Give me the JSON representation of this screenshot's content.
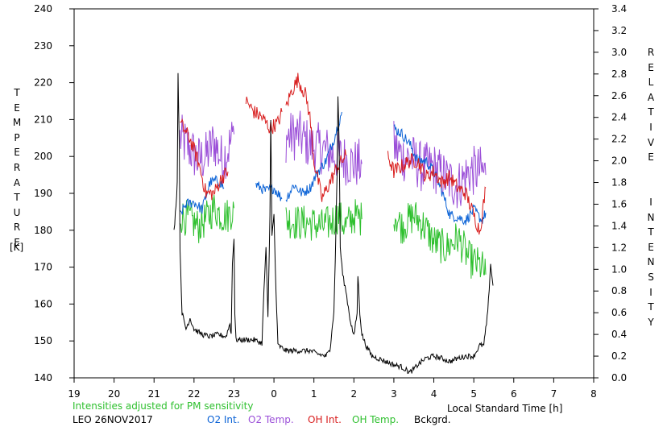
{
  "chart_data": {
    "type": "line",
    "station": "LEO 26NOV2017",
    "note": "Intensities adjusted for PM sensitivity",
    "left_axis": {
      "label": "TEMPERATURE",
      "unit": "[K]",
      "range": [
        140,
        240
      ],
      "ticks": [
        "140",
        "150",
        "160",
        "170",
        "180",
        "190",
        "200",
        "210",
        "220",
        "230",
        "240"
      ]
    },
    "right_axis": {
      "label": "RELATIVE INTENSITY",
      "range": [
        0.0,
        3.4
      ],
      "ticks": [
        "0.0",
        "0.2",
        "0.4",
        "0.6",
        "0.8",
        "1.0",
        "1.2",
        "1.4",
        "1.6",
        "1.8",
        "2.0",
        "2.2",
        "2.4",
        "2.6",
        "2.8",
        "3.0",
        "3.2",
        "3.4"
      ]
    },
    "x_axis": {
      "label": "Local Standard Time [h]",
      "range": [
        19,
        32
      ],
      "ticks": [
        "19",
        "20",
        "21",
        "22",
        "23",
        "0",
        "1",
        "2",
        "3",
        "4",
        "5",
        "6",
        "7",
        "8"
      ]
    },
    "legend": [
      {
        "name": "O2 Int.",
        "color": "#0a62d6"
      },
      {
        "name": "O2 Temp.",
        "color": "#9b4fd8"
      },
      {
        "name": "OH Int.",
        "color": "#d81c1c"
      },
      {
        "name": "OH Temp.",
        "color": "#2fc02f"
      },
      {
        "name": "Bckgrd.",
        "color": "#000000"
      }
    ],
    "series": [
      {
        "name": "O2 Temp.",
        "axis": "left",
        "color": "#9b4fd8",
        "noise": 7,
        "segments": [
          [
            [
              21.65,
              205
            ],
            [
              21.9,
              202
            ],
            [
              22.1,
              199
            ],
            [
              22.3,
              200
            ],
            [
              22.5,
              204
            ],
            [
              22.7,
              199
            ],
            [
              22.85,
              202
            ],
            [
              23.0,
              206
            ]
          ],
          [
            [
              24.3,
              205
            ],
            [
              24.6,
              206
            ],
            [
              24.9,
              203
            ],
            [
              25.2,
              202
            ],
            [
              25.4,
              201
            ],
            [
              25.6,
              200
            ],
            [
              25.8,
              199
            ],
            [
              26.0,
              198
            ],
            [
              26.2,
              198
            ]
          ],
          [
            [
              27.0,
              203
            ],
            [
              27.2,
              200
            ],
            [
              27.5,
              199
            ],
            [
              27.7,
              197
            ],
            [
              28.0,
              197
            ],
            [
              28.3,
              194
            ],
            [
              28.6,
              192
            ],
            [
              28.9,
              196
            ],
            [
              29.2,
              196
            ],
            [
              29.3,
              195
            ]
          ]
        ]
      },
      {
        "name": "OH Temp.",
        "axis": "left",
        "color": "#2fc02f",
        "noise": 5,
        "segments": [
          [
            [
              21.65,
              184
            ],
            [
              21.9,
              183
            ],
            [
              22.1,
              181
            ],
            [
              22.3,
              183
            ],
            [
              22.5,
              186
            ],
            [
              22.7,
              184
            ],
            [
              22.85,
              184
            ],
            [
              23.0,
              186
            ]
          ],
          [
            [
              24.3,
              183
            ],
            [
              24.6,
              182
            ],
            [
              24.9,
              182
            ],
            [
              25.2,
              181
            ],
            [
              25.4,
              182
            ],
            [
              25.6,
              184
            ],
            [
              25.8,
              181
            ],
            [
              26.0,
              184
            ],
            [
              26.2,
              183
            ]
          ],
          [
            [
              27.0,
              185
            ],
            [
              27.2,
              181
            ],
            [
              27.5,
              184
            ],
            [
              27.7,
              182
            ],
            [
              28.0,
              177
            ],
            [
              28.3,
              175
            ],
            [
              28.6,
              178
            ],
            [
              28.9,
              172
            ],
            [
              29.2,
              170
            ],
            [
              29.3,
              168
            ]
          ]
        ]
      },
      {
        "name": "O2 Int.",
        "axis": "right",
        "color": "#0a62d6",
        "noise": 0.05,
        "segments": [
          [
            [
              21.65,
              1.5
            ],
            [
              21.8,
              1.6
            ],
            [
              22.0,
              1.62
            ],
            [
              22.2,
              1.55
            ],
            [
              22.4,
              1.8
            ],
            [
              22.6,
              1.82
            ],
            [
              22.75,
              1.75
            ]
          ],
          [
            [
              23.55,
              1.78
            ],
            [
              23.8,
              1.72
            ],
            [
              24.0,
              1.75
            ],
            [
              24.2,
              1.65
            ]
          ],
          [
            [
              24.3,
              1.65
            ],
            [
              24.5,
              1.78
            ],
            [
              24.7,
              1.7
            ],
            [
              24.9,
              1.75
            ],
            [
              25.1,
              1.9
            ],
            [
              25.3,
              2.0
            ],
            [
              25.5,
              2.2
            ],
            [
              25.7,
              2.45
            ]
          ],
          [
            [
              27.0,
              2.3
            ],
            [
              27.2,
              2.25
            ],
            [
              27.4,
              2.15
            ],
            [
              27.6,
              2.0
            ],
            [
              27.8,
              2.0
            ],
            [
              28.0,
              1.9
            ],
            [
              28.2,
              1.72
            ],
            [
              28.4,
              1.5
            ],
            [
              28.6,
              1.48
            ],
            [
              28.8,
              1.45
            ],
            [
              29.0,
              1.55
            ],
            [
              29.2,
              1.45
            ],
            [
              29.3,
              1.52
            ]
          ]
        ]
      },
      {
        "name": "OH Int.",
        "axis": "right",
        "color": "#d81c1c",
        "noise": 0.07,
        "segments": [
          [
            [
              21.65,
              2.35
            ],
            [
              21.9,
              2.2
            ],
            [
              22.1,
              2.0
            ],
            [
              22.3,
              1.7
            ],
            [
              22.5,
              1.7
            ],
            [
              22.7,
              1.85
            ],
            [
              22.85,
              1.9
            ]
          ],
          [
            [
              23.3,
              2.55
            ],
            [
              23.5,
              2.45
            ],
            [
              23.7,
              2.4
            ],
            [
              23.9,
              2.3
            ],
            [
              24.1,
              2.35
            ],
            [
              24.2,
              2.45
            ]
          ],
          [
            [
              24.3,
              2.5
            ],
            [
              24.45,
              2.65
            ],
            [
              24.6,
              2.75
            ],
            [
              24.8,
              2.6
            ],
            [
              24.9,
              2.4
            ],
            [
              25.0,
              2.0
            ],
            [
              25.2,
              1.65
            ],
            [
              25.4,
              1.8
            ],
            [
              25.6,
              1.95
            ],
            [
              25.8,
              2.05
            ]
          ],
          [
            [
              26.85,
              2.05
            ],
            [
              27.0,
              1.9
            ],
            [
              27.2,
              1.95
            ],
            [
              27.4,
              2.0
            ],
            [
              27.6,
              2.0
            ],
            [
              27.8,
              1.85
            ],
            [
              28.0,
              1.9
            ],
            [
              28.2,
              1.8
            ],
            [
              28.4,
              1.85
            ],
            [
              28.6,
              1.75
            ],
            [
              28.8,
              1.7
            ],
            [
              29.0,
              1.5
            ],
            [
              29.15,
              1.35
            ],
            [
              29.3,
              1.75
            ]
          ]
        ]
      },
      {
        "name": "Bckgrd.",
        "axis": "right",
        "color": "#000000",
        "noise": 0.025,
        "segments": [
          [
            [
              21.5,
              1.35
            ],
            [
              21.55,
              1.6
            ],
            [
              21.58,
              1.8
            ],
            [
              21.6,
              2.8
            ],
            [
              21.63,
              2.2
            ],
            [
              21.65,
              1.2
            ],
            [
              21.7,
              0.6
            ],
            [
              21.8,
              0.45
            ],
            [
              21.9,
              0.55
            ],
            [
              22.0,
              0.45
            ],
            [
              22.2,
              0.4
            ],
            [
              22.4,
              0.38
            ],
            [
              22.6,
              0.4
            ],
            [
              22.8,
              0.38
            ],
            [
              22.9,
              0.5
            ],
            [
              22.93,
              0.4
            ],
            [
              22.96,
              1.05
            ],
            [
              23.0,
              1.3
            ],
            [
              23.02,
              0.6
            ],
            [
              23.05,
              0.35
            ],
            [
              23.2,
              0.35
            ],
            [
              23.5,
              0.35
            ],
            [
              23.7,
              0.32
            ],
            [
              23.75,
              0.8
            ],
            [
              23.8,
              1.2
            ],
            [
              23.85,
              0.55
            ],
            [
              23.9,
              1.5
            ],
            [
              23.92,
              2.4
            ],
            [
              23.95,
              1.3
            ],
            [
              24.0,
              1.5
            ],
            [
              24.05,
              0.8
            ],
            [
              24.1,
              0.3
            ],
            [
              24.3,
              0.25
            ],
            [
              24.6,
              0.25
            ],
            [
              24.9,
              0.25
            ],
            [
              25.1,
              0.22
            ],
            [
              25.3,
              0.2
            ],
            [
              25.4,
              0.25
            ],
            [
              25.45,
              0.45
            ],
            [
              25.5,
              0.6
            ],
            [
              25.55,
              1.35
            ],
            [
              25.58,
              1.9
            ],
            [
              25.6,
              2.6
            ],
            [
              25.63,
              2.2
            ],
            [
              25.66,
              1.2
            ],
            [
              25.72,
              0.95
            ],
            [
              25.8,
              0.8
            ],
            [
              25.9,
              0.55
            ],
            [
              26.0,
              0.38
            ],
            [
              26.08,
              0.6
            ],
            [
              26.1,
              0.95
            ],
            [
              26.15,
              0.6
            ],
            [
              26.2,
              0.4
            ],
            [
              26.3,
              0.3
            ],
            [
              26.45,
              0.2
            ],
            [
              26.6,
              0.18
            ],
            [
              26.8,
              0.15
            ],
            [
              27.0,
              0.12
            ],
            [
              27.2,
              0.1
            ],
            [
              27.4,
              0.05
            ],
            [
              27.5,
              0.08
            ],
            [
              27.6,
              0.12
            ],
            [
              27.8,
              0.18
            ],
            [
              28.0,
              0.2
            ],
            [
              28.2,
              0.18
            ],
            [
              28.4,
              0.15
            ],
            [
              28.6,
              0.18
            ],
            [
              28.8,
              0.2
            ],
            [
              29.0,
              0.2
            ],
            [
              29.15,
              0.3
            ],
            [
              29.25,
              0.3
            ],
            [
              29.35,
              0.6
            ],
            [
              29.42,
              1.05
            ],
            [
              29.45,
              0.95
            ],
            [
              29.48,
              0.85
            ]
          ]
        ]
      }
    ]
  }
}
